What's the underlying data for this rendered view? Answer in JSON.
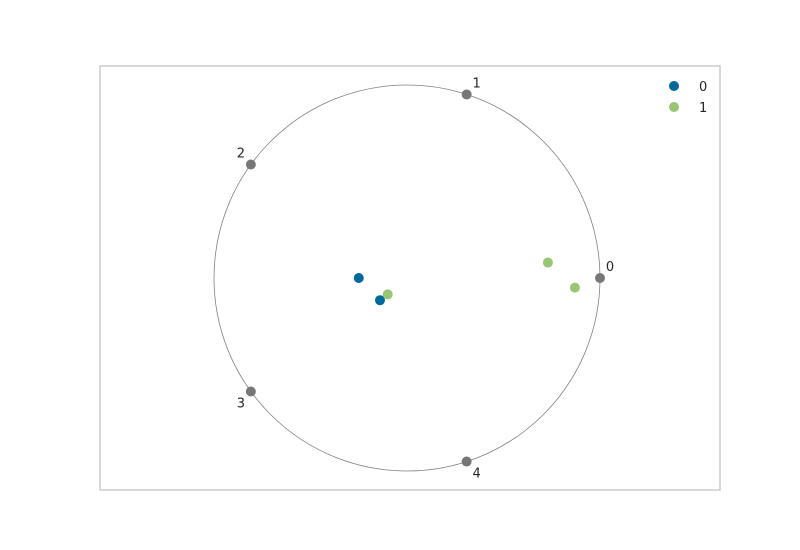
{
  "chart_data": {
    "type": "scatter",
    "subtype": "radviz",
    "title": "",
    "xlabel": "",
    "ylabel": "",
    "xlim": [
      -1.5,
      1.5
    ],
    "ylim": [
      -1.1,
      1.1
    ],
    "grid": false,
    "legend_position": "top-right",
    "circle_color": "#808080",
    "anchor_color": "#777777",
    "anchors": [
      {
        "label": "0",
        "x": 1.0,
        "y": 0.0
      },
      {
        "label": "1",
        "x": 0.309,
        "y": 0.951
      },
      {
        "label": "2",
        "x": -0.809,
        "y": 0.588
      },
      {
        "label": "3",
        "x": -0.809,
        "y": -0.588
      },
      {
        "label": "4",
        "x": 0.309,
        "y": -0.951
      }
    ],
    "series": [
      {
        "name": "0",
        "color": "#00689b",
        "points": [
          [
            -0.25,
            0.0
          ],
          [
            -0.14,
            -0.115
          ]
        ]
      },
      {
        "name": "1",
        "color": "#98c672",
        "points": [
          [
            -0.1,
            -0.085
          ],
          [
            0.73,
            0.08
          ],
          [
            0.87,
            -0.05
          ]
        ]
      }
    ]
  }
}
